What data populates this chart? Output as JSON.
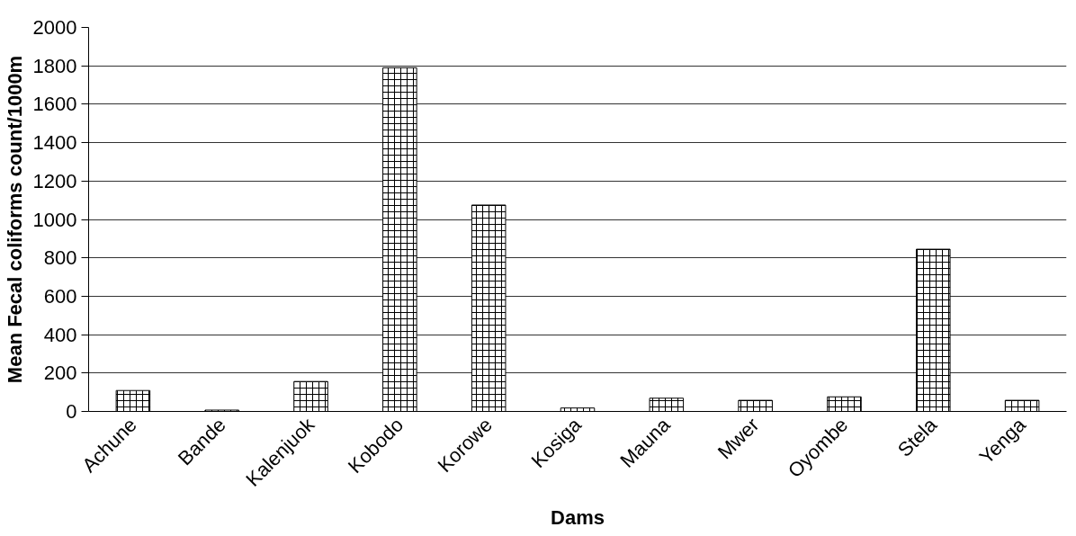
{
  "chart_data": {
    "type": "bar",
    "xlabel": "Dams",
    "ylabel": "Mean Fecal coliforms count/1000m",
    "categories": [
      "Achune",
      "Bande",
      "Kalenjuok",
      "Kobodo",
      "Korowe",
      "Kosiga",
      "Mauna",
      "Mwer",
      "Oyombe",
      "Stela",
      "Yenga"
    ],
    "values": [
      109,
      7,
      156,
      1790,
      1075,
      18,
      69,
      58,
      76,
      845,
      58
    ],
    "color": "#ffffff",
    "ylim": [
      0,
      2000
    ],
    "yticks": [
      0,
      200,
      400,
      600,
      800,
      1000,
      1200,
      1400,
      1600,
      1800,
      2000
    ],
    "grid": "y"
  }
}
